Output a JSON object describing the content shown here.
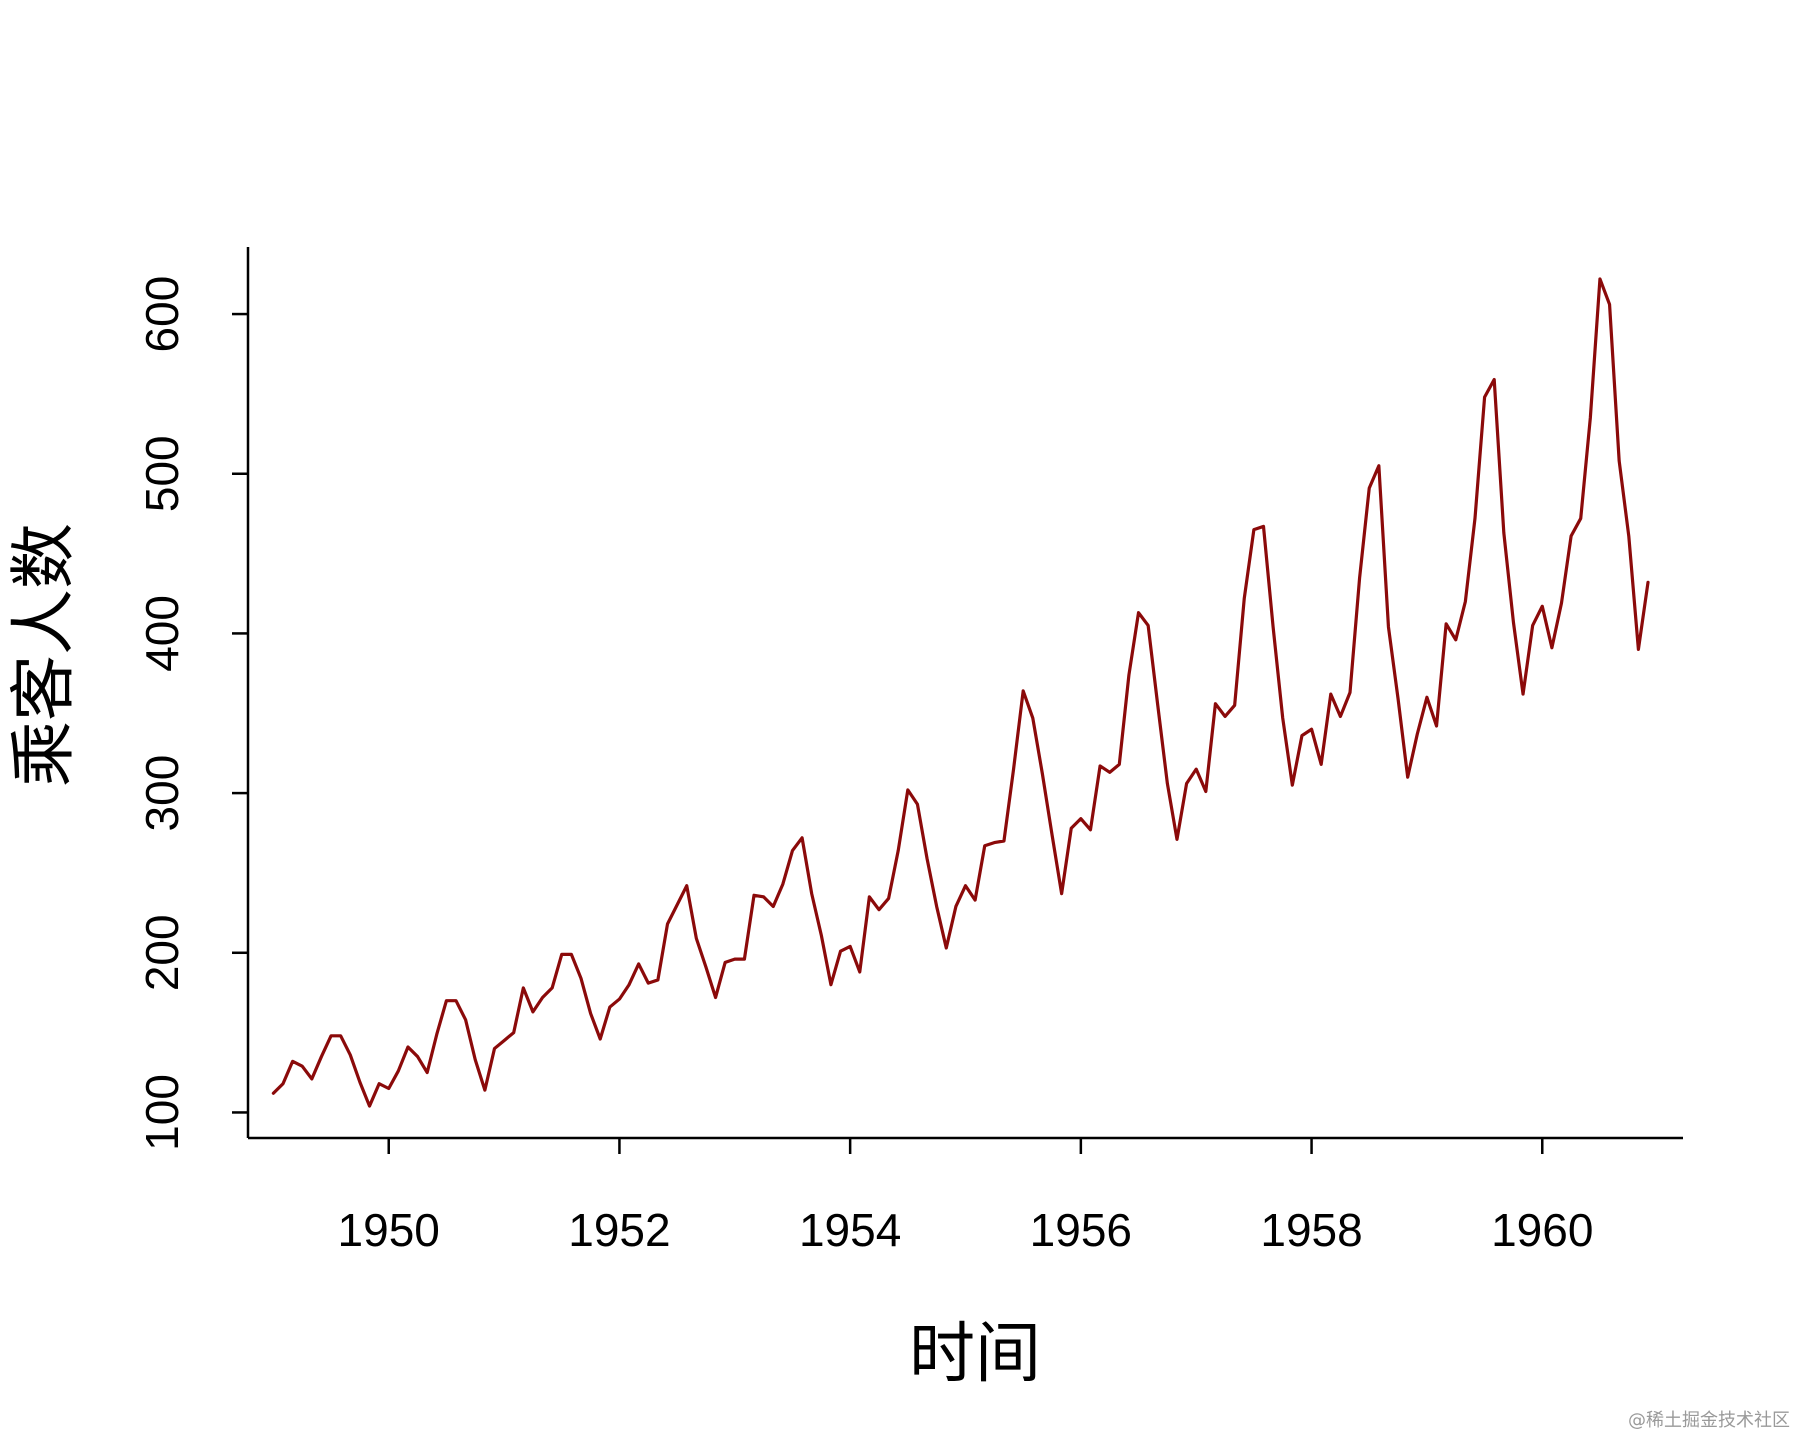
{
  "chart_data": {
    "type": "line",
    "title": "",
    "xlabel": "时间",
    "ylabel": "乘客人数",
    "line_color": "#8B0A0A",
    "xlim": [
      1948.78,
      1961.22
    ],
    "ylim": [
      84,
      642
    ],
    "x_ticks": [
      1950,
      1952,
      1954,
      1956,
      1958,
      1960
    ],
    "x_tick_labels": [
      "1950",
      "1952",
      "1954",
      "1956",
      "1958",
      "1960"
    ],
    "y_ticks": [
      100,
      200,
      300,
      400,
      500,
      600
    ],
    "y_tick_labels": [
      "100",
      "200",
      "300",
      "400",
      "500",
      "600"
    ],
    "x_start": 1949,
    "x_step": 0.0833333333,
    "series": [
      {
        "name": "乘客人数",
        "values": [
          112,
          118,
          132,
          129,
          121,
          135,
          148,
          148,
          136,
          119,
          104,
          118,
          115,
          126,
          141,
          135,
          125,
          149,
          170,
          170,
          158,
          133,
          114,
          140,
          145,
          150,
          178,
          163,
          172,
          178,
          199,
          199,
          184,
          162,
          146,
          166,
          171,
          180,
          193,
          181,
          183,
          218,
          230,
          242,
          209,
          191,
          172,
          194,
          196,
          196,
          236,
          235,
          229,
          243,
          264,
          272,
          237,
          211,
          180,
          201,
          204,
          188,
          235,
          227,
          234,
          264,
          302,
          293,
          259,
          229,
          203,
          229,
          242,
          233,
          267,
          269,
          270,
          315,
          364,
          347,
          312,
          274,
          237,
          278,
          284,
          277,
          317,
          313,
          318,
          374,
          413,
          405,
          355,
          306,
          271,
          306,
          315,
          301,
          356,
          348,
          355,
          422,
          465,
          467,
          404,
          347,
          305,
          336,
          340,
          318,
          362,
          348,
          363,
          435,
          491,
          505,
          404,
          359,
          310,
          337,
          360,
          342,
          406,
          396,
          420,
          472,
          548,
          559,
          463,
          407,
          362,
          405,
          417,
          391,
          419,
          461,
          472,
          535,
          622,
          606,
          508,
          461,
          390,
          432
        ]
      }
    ]
  },
  "watermark": "@稀土掘金技术社区"
}
